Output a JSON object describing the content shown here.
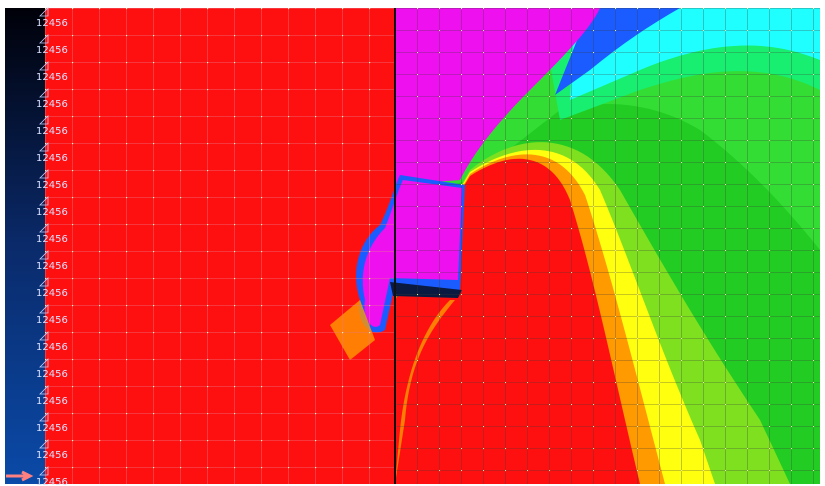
{
  "node_labels": [
    "12456",
    "12456",
    "12456",
    "12456",
    "12456",
    "12456",
    "12456",
    "12456",
    "12456",
    "12456",
    "12456",
    "12456",
    "12456",
    "12456",
    "12456",
    "12456",
    "12456",
    "12456"
  ]
}
